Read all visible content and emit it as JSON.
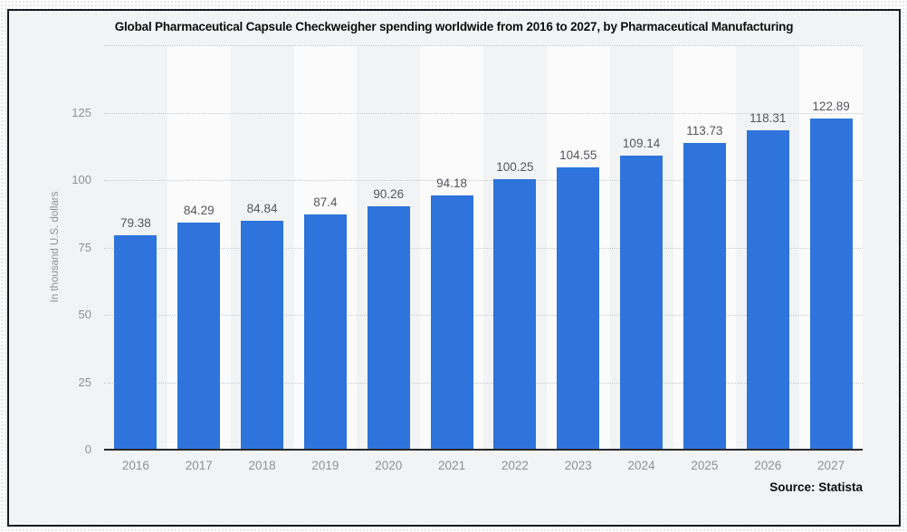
{
  "frame": {
    "border_color": "#191a1f",
    "background": "#f2f3f4"
  },
  "chart_data": {
    "type": "bar",
    "title": "Global Pharmaceutical Capsule Checkweigher spending worldwide from 2016 to 2027, by Pharmaceutical Manufacturing",
    "categories": [
      "2016",
      "2017",
      "2018",
      "2019",
      "2020",
      "2021",
      "2022",
      "2023",
      "2024",
      "2025",
      "2026",
      "2027"
    ],
    "values": [
      79.38,
      84.29,
      84.84,
      87.4,
      90.26,
      94.18,
      100.25,
      104.55,
      109.14,
      113.73,
      118.31,
      122.89
    ],
    "xlabel": "",
    "ylabel": "In thousand U.S. dollars",
    "ylim": [
      0,
      150
    ],
    "yticks": [
      0,
      25,
      50,
      75,
      100,
      125
    ],
    "top_gridline_value": 150,
    "grid": "horizontal-dotted",
    "legend": "none",
    "value_labels": "above-bars",
    "bar_color": "#2e74dc",
    "band_color": "#fbfbfc",
    "gridline_color": "#c7c8cb",
    "source": "Source: Statista"
  }
}
